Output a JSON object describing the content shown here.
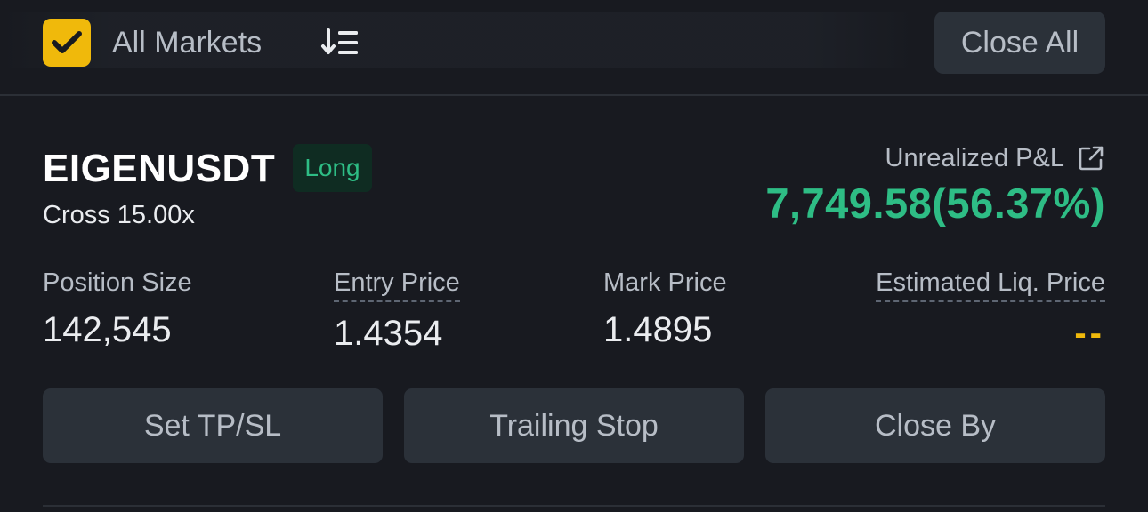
{
  "toolbar": {
    "all_markets_label": "All Markets",
    "all_markets_checked": true,
    "close_all_label": "Close All"
  },
  "position": {
    "symbol": "EIGENUSDT",
    "side": "Long",
    "margin_mode": "Cross 15.00x",
    "pnl_label": "Unrealized P&L",
    "pnl_value": "7,749.58(56.37%)",
    "stats": {
      "position_size": {
        "label": "Position Size",
        "value": "142,545"
      },
      "entry_price": {
        "label": "Entry Price",
        "value": "1.4354"
      },
      "mark_price": {
        "label": "Mark Price",
        "value": "1.4895"
      },
      "liq_price": {
        "label": "Estimated Liq. Price",
        "value": "--"
      }
    },
    "actions": {
      "tpsl": "Set TP/SL",
      "trailing_stop": "Trailing Stop",
      "close_by": "Close By"
    }
  },
  "colors": {
    "background": "#181a20",
    "accent_yellow": "#f0b90b",
    "profit_green": "#2ebd85",
    "button_bg": "#2b3139"
  },
  "icons": {
    "checkbox": "checkmark-icon",
    "sort": "sort-list-icon",
    "share": "share-external-icon"
  }
}
